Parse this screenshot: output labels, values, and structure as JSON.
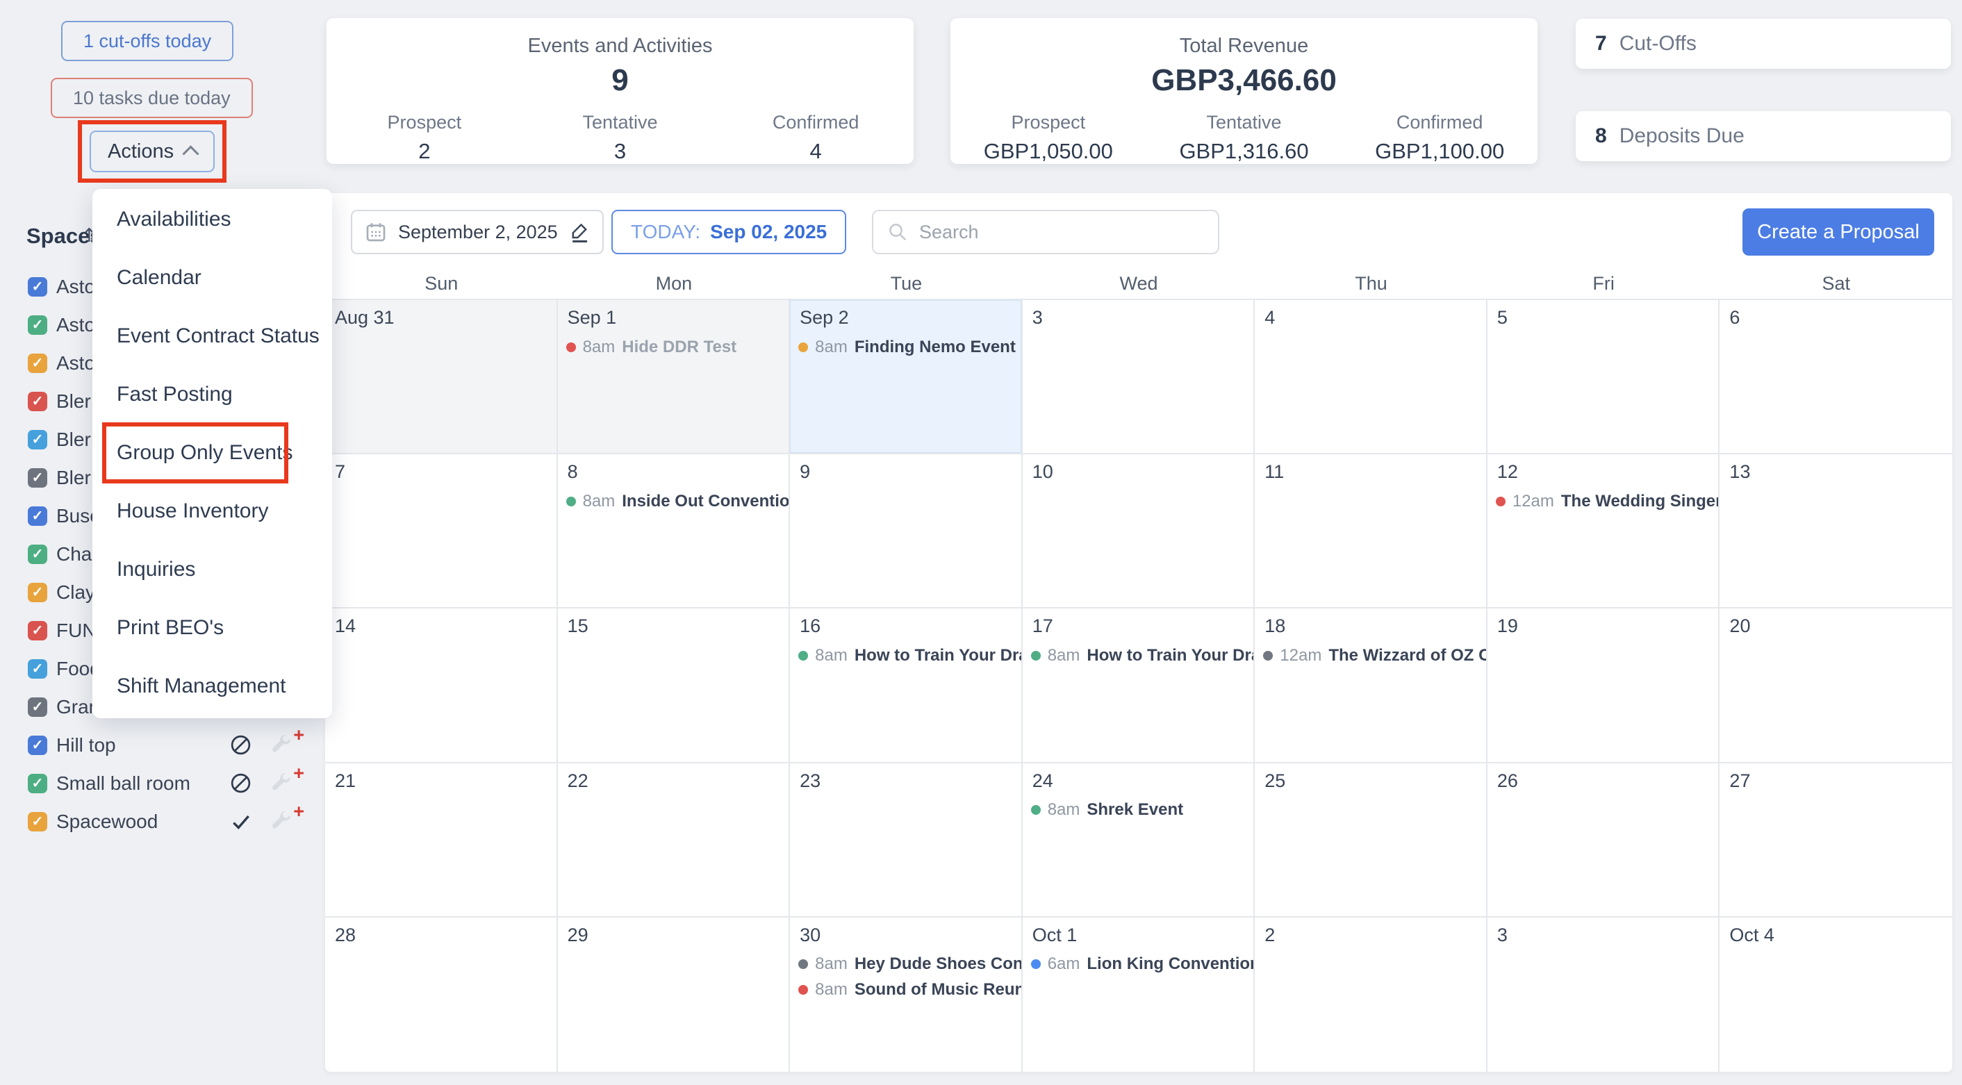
{
  "topbar": {
    "cutoffs_button": "1 cut-offs today",
    "tasks_button": "10 tasks due today",
    "actions_button": "Actions"
  },
  "stats_events": {
    "title": "Events and Activities",
    "total": "9",
    "items": [
      {
        "label": "Prospect",
        "value": "2"
      },
      {
        "label": "Tentative",
        "value": "3"
      },
      {
        "label": "Confirmed",
        "value": "4"
      }
    ]
  },
  "stats_revenue": {
    "title": "Total Revenue",
    "total": "GBP3,466.60",
    "items": [
      {
        "label": "Prospect",
        "value": "GBP1,050.00"
      },
      {
        "label": "Tentative",
        "value": "GBP1,316.60"
      },
      {
        "label": "Confirmed",
        "value": "GBP1,100.00"
      }
    ]
  },
  "alerts": [
    {
      "count": "7",
      "label": "Cut-Offs"
    },
    {
      "count": "8",
      "label": "Deposits Due"
    }
  ],
  "actions_menu": {
    "items": [
      "Availabilities",
      "Calendar",
      "Event Contract Status",
      "Fast Posting",
      "Group Only Events",
      "House Inventory",
      "Inquiries",
      "Print BEO's",
      "Shift Management"
    ],
    "highlighted_item": "Group Only Events"
  },
  "sidebar": {
    "title": "Spaces",
    "spaces": [
      {
        "label": "Asto",
        "color": "#4a7ad8"
      },
      {
        "label": "Asto",
        "color": "#4cae82"
      },
      {
        "label": "Asto",
        "color": "#e8a33d"
      },
      {
        "label": "Bler",
        "color": "#d9534f"
      },
      {
        "label": "Bler",
        "color": "#45a0dc"
      },
      {
        "label": "Bler",
        "color": "#6d747e"
      },
      {
        "label": "Buse",
        "color": "#4a7ad8"
      },
      {
        "label": "Cha",
        "color": "#4cae82"
      },
      {
        "label": "Clay",
        "color": "#e8a33d"
      },
      {
        "label": "FUN",
        "color": "#d9534f"
      },
      {
        "label": "Food",
        "color": "#45a0dc"
      },
      {
        "label": "Gran",
        "color": "#6d747e"
      },
      {
        "label": "Hill top",
        "color": "#4a7ad8",
        "status": "ban",
        "wrench": true
      },
      {
        "label": "Small ball room",
        "color": "#4cae82",
        "status": "ban",
        "wrench": true
      },
      {
        "label": "Spacewood",
        "color": "#e8a33d",
        "status": "check",
        "wrench": true
      }
    ]
  },
  "toolbar": {
    "date_label": "September 2, 2025",
    "today_prefix": "TODAY:",
    "today_date": "Sep 02, 2025",
    "search_placeholder": "Search",
    "create_button": "Create a Proposal"
  },
  "calendar": {
    "day_headers": [
      "Sun",
      "Mon",
      "Tue",
      "Wed",
      "Thu",
      "Fri",
      "Sat"
    ],
    "weeks": [
      [
        {
          "day": "Aug 31",
          "past": true
        },
        {
          "day": "Sep 1",
          "past": true,
          "events": [
            {
              "time": "8am",
              "title": "Hide DDR Test",
              "dot": "#e0534f",
              "muted": true
            }
          ]
        },
        {
          "day": "Sep 2",
          "today": true,
          "events": [
            {
              "time": "8am",
              "title": "Finding Nemo Event",
              "dot": "#e9a43c"
            }
          ]
        },
        {
          "day": "3"
        },
        {
          "day": "4"
        },
        {
          "day": "5"
        },
        {
          "day": "6"
        }
      ],
      [
        {
          "day": "7"
        },
        {
          "day": "8",
          "events": [
            {
              "time": "8am",
              "title": "Inside Out Convention",
              "dot": "#4fae85"
            }
          ]
        },
        {
          "day": "9"
        },
        {
          "day": "10"
        },
        {
          "day": "11"
        },
        {
          "day": "12",
          "events": [
            {
              "time": "12am",
              "title": "The Wedding Singer",
              "dot": "#e0534f"
            }
          ]
        },
        {
          "day": "13"
        }
      ],
      [
        {
          "day": "14"
        },
        {
          "day": "15"
        },
        {
          "day": "16",
          "events": [
            {
              "time": "8am",
              "title": "How to Train Your Drag",
              "dot": "#4fae85"
            }
          ]
        },
        {
          "day": "17",
          "events": [
            {
              "time": "8am",
              "title": "How to Train Your Drag",
              "dot": "#4fae85"
            }
          ]
        },
        {
          "day": "18",
          "events": [
            {
              "time": "12am",
              "title": "The Wizzard of OZ Co",
              "dot": "#707781"
            }
          ]
        },
        {
          "day": "19"
        },
        {
          "day": "20"
        }
      ],
      [
        {
          "day": "21"
        },
        {
          "day": "22"
        },
        {
          "day": "23"
        },
        {
          "day": "24",
          "events": [
            {
              "time": "8am",
              "title": "Shrek Event",
              "dot": "#4fae85"
            }
          ]
        },
        {
          "day": "25"
        },
        {
          "day": "26"
        },
        {
          "day": "27"
        }
      ],
      [
        {
          "day": "28"
        },
        {
          "day": "29"
        },
        {
          "day": "30",
          "events": [
            {
              "time": "8am",
              "title": "Hey Dude Shoes Conve",
              "dot": "#707781"
            },
            {
              "time": "8am",
              "title": "Sound of Music Reunio",
              "dot": "#e0534f"
            }
          ]
        },
        {
          "day": "Oct 1",
          "events": [
            {
              "time": "6am",
              "title": "Lion King Convention",
              "dot": "#4b8af0"
            }
          ]
        },
        {
          "day": "2"
        },
        {
          "day": "3"
        },
        {
          "day": "Oct 4"
        }
      ]
    ]
  },
  "colors": {
    "highlight_outline": "#e8391d",
    "primary_blue": "#4c7de4",
    "today_cell_bg": "#e9f2fd"
  }
}
